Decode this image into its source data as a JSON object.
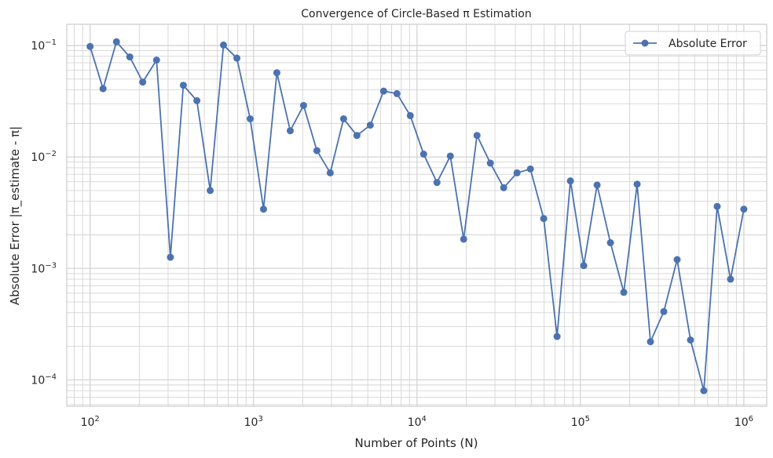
{
  "chart_data": {
    "type": "line",
    "title": "Convergence of Circle-Based π Estimation",
    "xlabel": "Number of Points (N)",
    "ylabel": "Absolute Error |π_estimate - π|",
    "xscale": "log",
    "yscale": "log",
    "xlim": [
      72,
      1380000
    ],
    "ylim": [
      5.8e-05,
      0.155
    ],
    "grid": true,
    "grid_minor": true,
    "legend_position": "top-right",
    "x_ticks": [
      {
        "value": 100,
        "base": "10",
        "exp": "2"
      },
      {
        "value": 1000,
        "base": "10",
        "exp": "3"
      },
      {
        "value": 10000,
        "base": "10",
        "exp": "4"
      },
      {
        "value": 100000,
        "base": "10",
        "exp": "5"
      },
      {
        "value": 1000000,
        "base": "10",
        "exp": "6"
      }
    ],
    "y_ticks": [
      {
        "value": 0.0001,
        "base": "10",
        "exp": "−4"
      },
      {
        "value": 0.001,
        "base": "10",
        "exp": "−3"
      },
      {
        "value": 0.01,
        "base": "10",
        "exp": "−2"
      },
      {
        "value": 0.1,
        "base": "10",
        "exp": "−1"
      }
    ],
    "series": [
      {
        "name": "Absolute Error",
        "color": "#4c72b0",
        "marker": "circle",
        "x": [
          100,
          120,
          145,
          175,
          210,
          255,
          310,
          372,
          450,
          543,
          655,
          791,
          954,
          1151,
          1389,
          1677,
          2024,
          2442,
          2947,
          3556,
          4292,
          5179,
          6251,
          7543,
          9103,
          10985,
          13257,
          15999,
          19307,
          23300,
          28118,
          33932,
          40949,
          49417,
          59636,
          71968,
          86851,
          104811,
          126486,
          152642,
          184207,
          222299,
          268270,
          323746,
          390694,
          471487,
          568987,
          686649,
          828643,
          1000000
        ],
        "y": [
          0.098,
          0.041,
          0.108,
          0.079,
          0.047,
          0.074,
          0.00126,
          0.044,
          0.032,
          0.005,
          0.101,
          0.077,
          0.022,
          0.0034,
          0.057,
          0.0172,
          0.029,
          0.0114,
          0.0072,
          0.022,
          0.0156,
          0.0193,
          0.039,
          0.037,
          0.0235,
          0.0106,
          0.0059,
          0.0102,
          0.00183,
          0.0156,
          0.0088,
          0.0053,
          0.0072,
          0.0078,
          0.0028,
          0.000245,
          0.0061,
          0.00106,
          0.0056,
          0.0017,
          0.00061,
          0.0057,
          0.00022,
          0.00041,
          0.0012,
          0.000228,
          8e-05,
          0.0036,
          0.0008,
          0.0034
        ]
      }
    ]
  }
}
